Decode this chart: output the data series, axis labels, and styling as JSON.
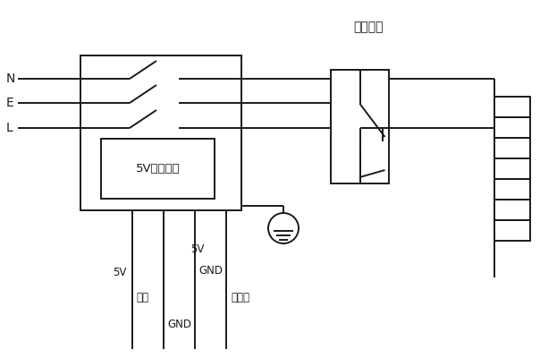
{
  "title": "热断路器",
  "bg_color": "#ffffff",
  "line_color": "#1a1a1a",
  "lw": 1.4,
  "fig_w": 6.04,
  "fig_h": 4.0,
  "dpi": 100,
  "N_label": "N",
  "E_label": "E",
  "L_label": "L",
  "label_5V_1": "5V",
  "label_sig": "信号",
  "label_GND_1": "GND",
  "label_5V_2": "5V",
  "label_GND_2": "GND",
  "label_feedback": "反馈线"
}
